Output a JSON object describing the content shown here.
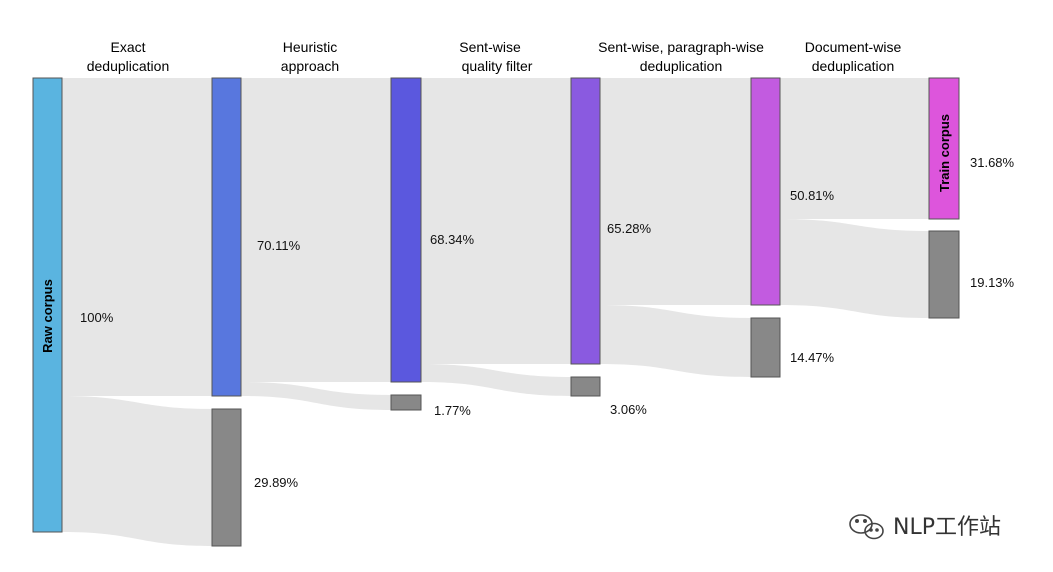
{
  "stages": [
    {
      "line1": "Exact",
      "line2": "deduplication"
    },
    {
      "line1": "Heuristic",
      "line2": "approach"
    },
    {
      "line1": "Sent-wise",
      "line2": "quality filter"
    },
    {
      "line1": "Sent-wise, paragraph-wise",
      "line2": "deduplication"
    },
    {
      "line1": "Document-wise",
      "line2": "deduplication"
    }
  ],
  "nodes": {
    "raw": {
      "label": "Raw corpus",
      "value": "100%",
      "color": "#5ab4e0"
    },
    "n1_keep": {
      "value": "70.11%",
      "color": "#5877de"
    },
    "n1_drop": {
      "value": "29.89%",
      "color": "#888888"
    },
    "n2_keep": {
      "value": "68.34%",
      "color": "#5b58de"
    },
    "n2_drop": {
      "value": "1.77%",
      "color": "#888888"
    },
    "n3_keep": {
      "value": "65.28%",
      "color": "#8a5ae0"
    },
    "n3_drop": {
      "value": "3.06%",
      "color": "#888888"
    },
    "n4_keep": {
      "value": "50.81%",
      "color": "#c25be0"
    },
    "n4_drop": {
      "value": "14.47%",
      "color": "#888888"
    },
    "train": {
      "label": "Train corpus",
      "value": "31.68%",
      "color": "#dd55dc"
    },
    "n5_drop": {
      "value": "19.13%",
      "color": "#888888"
    }
  },
  "watermark": {
    "text": "NLP工作站",
    "icon": "wechat-icon"
  }
}
